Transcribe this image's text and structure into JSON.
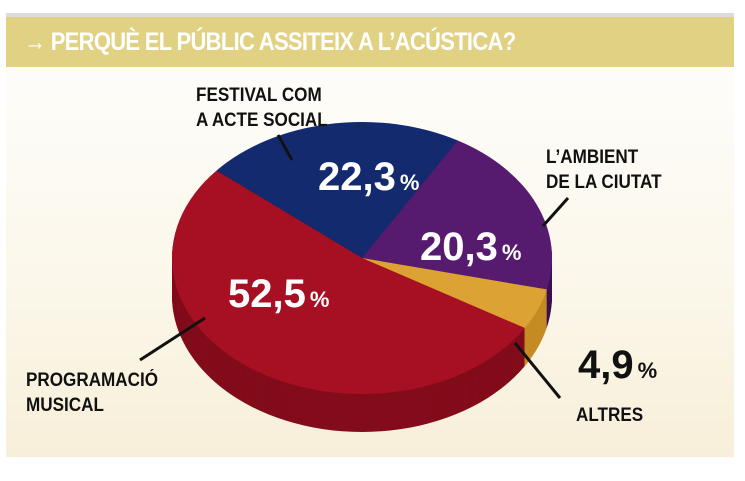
{
  "chart_data": {
    "type": "pie",
    "title": "→ PERQUÈ EL PÚBLIC ASSITEIX A L’ACÚSTICA?",
    "slices": [
      {
        "label_lines": [
          "FESTIVAL COM",
          "A ACTE SOCIAL"
        ],
        "value": 22.3,
        "value_text": "22,3",
        "color": "#132a6e",
        "side_color": "#0c1c4d"
      },
      {
        "label_lines": [
          "L’AMBIENT",
          "DE LA CIUTAT"
        ],
        "value": 20.3,
        "value_text": "20,3",
        "color": "#561b6f",
        "side_color": "#3e1052"
      },
      {
        "label_lines": [
          "ALTRES"
        ],
        "value": 4.9,
        "value_text": "4,9",
        "color": "#dca233",
        "side_color": "#c48c24"
      },
      {
        "label_lines": [
          "PROGRAMACIÓ",
          "MUSICAL"
        ],
        "value": 52.5,
        "value_text": "52,5",
        "color": "#a61022",
        "side_color": "#820c1b"
      }
    ],
    "unit": "%"
  }
}
